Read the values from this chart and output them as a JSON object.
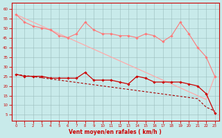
{
  "x": [
    0,
    1,
    2,
    3,
    4,
    5,
    6,
    7,
    8,
    9,
    10,
    11,
    12,
    13,
    14,
    15,
    16,
    17,
    18,
    19,
    20,
    21,
    22,
    23
  ],
  "rafales_jagged": [
    57,
    53,
    51,
    50,
    49,
    46,
    45,
    47,
    53,
    49,
    47,
    47,
    46,
    46,
    45,
    47,
    46,
    43,
    46,
    53,
    47,
    40,
    35,
    25
  ],
  "trend_rafales": [
    57,
    55,
    53,
    51,
    49,
    47,
    45,
    43,
    41,
    39,
    37,
    35,
    33,
    31,
    29,
    27,
    25,
    23,
    21,
    19,
    17,
    15,
    13,
    25
  ],
  "vent_moyen": [
    26,
    25,
    25,
    25,
    24,
    24,
    24,
    24,
    27,
    23,
    23,
    23,
    22,
    21,
    25,
    24,
    22,
    22,
    22,
    22,
    21,
    20,
    16,
    6
  ],
  "trend_vent": [
    26,
    25.4,
    24.8,
    24.2,
    23.6,
    23.0,
    22.4,
    21.8,
    21.2,
    20.6,
    20.0,
    19.4,
    18.8,
    18.2,
    17.6,
    17.0,
    16.4,
    15.8,
    15.2,
    14.6,
    14.0,
    13.4,
    9,
    7
  ],
  "bg_color": "#c8eaea",
  "grid_color": "#9bbcbc",
  "color_rafales_trend": "#ffaaaa",
  "color_rafales_jagged": "#ff7777",
  "color_vent": "#cc0000",
  "color_vent_trend": "#aa0000",
  "xlabel": "Vent moyen/en rafales ( km/h )",
  "yticks": [
    5,
    10,
    15,
    20,
    25,
    30,
    35,
    40,
    45,
    50,
    55,
    60
  ],
  "ylim": [
    2,
    63
  ],
  "xlim": [
    -0.5,
    23.5
  ]
}
